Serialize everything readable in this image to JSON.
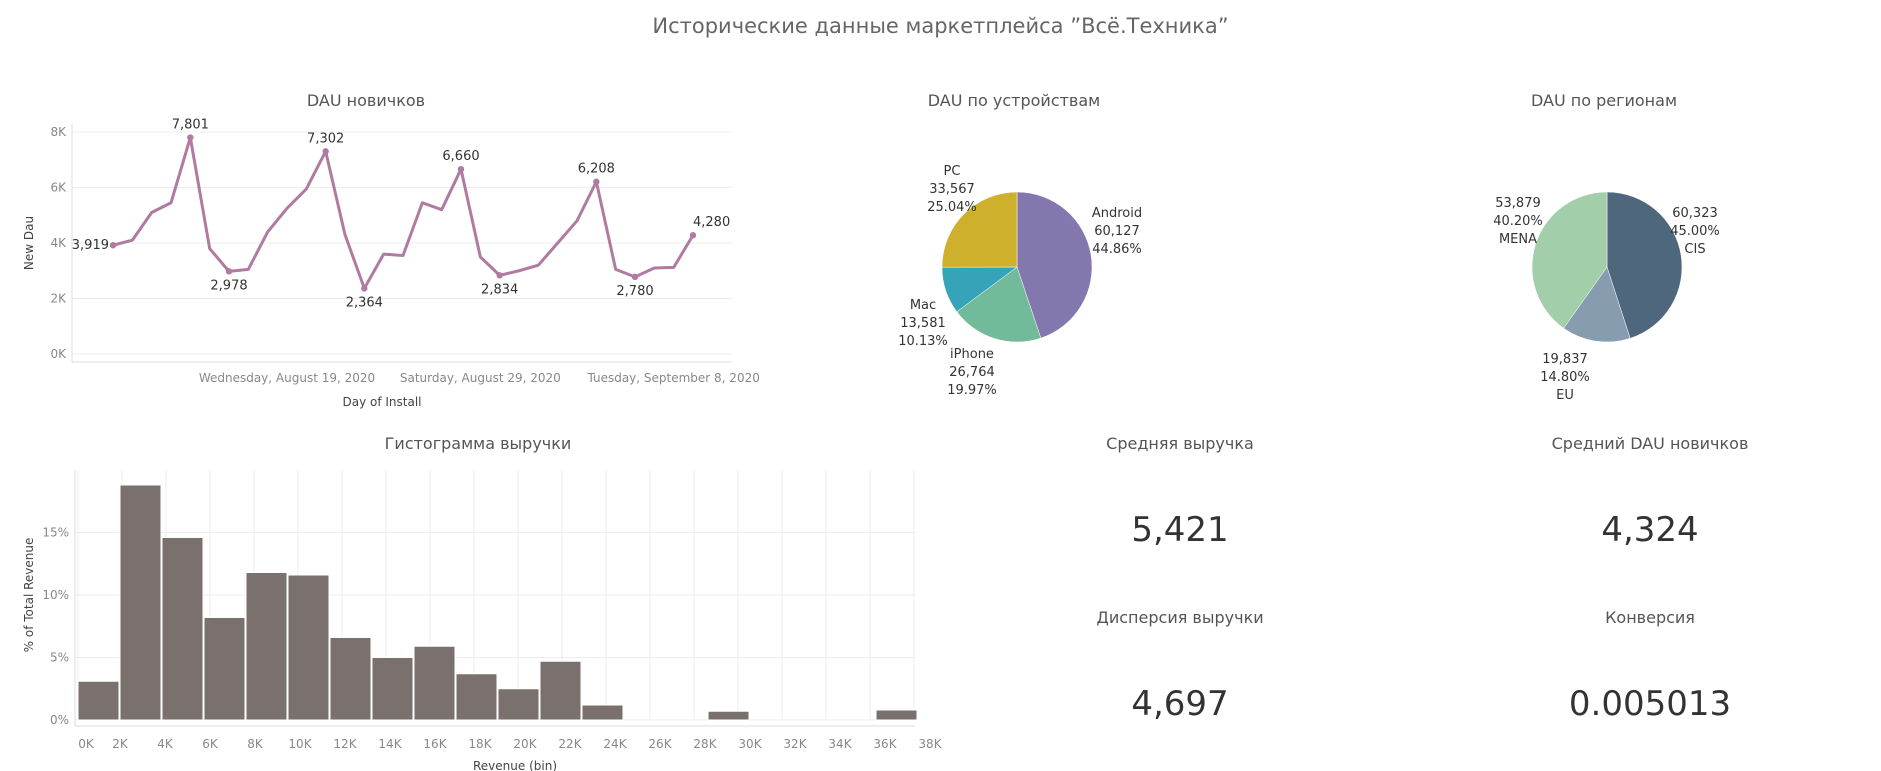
{
  "dashboard_title": "Исторические данные маркетплейса ”Всё.Техника”",
  "colors": {
    "line": "#b07aa1",
    "hist_bar": "#7a706d",
    "grid": "#ececec"
  },
  "kpis": {
    "avg_revenue": {
      "label": "Средняя выручка",
      "value": "5,421"
    },
    "avg_new_dau": {
      "label": "Средний DAU новичков",
      "value": "4,324"
    },
    "revenue_variance": {
      "label": "Дисперсия выручки",
      "value": "4,697"
    },
    "conversion": {
      "label": "Конверсия",
      "value": "0.005013"
    }
  },
  "chart_data": [
    {
      "id": "dau_new",
      "type": "line",
      "title": "DAU новичков",
      "xlabel": "Day of Install",
      "ylabel": "New Dau",
      "ylim": [
        0,
        8000
      ],
      "y_ticks": [
        0,
        2000,
        4000,
        6000,
        8000
      ],
      "y_tick_labels": [
        "0K",
        "2K",
        "4K",
        "6K",
        "8K"
      ],
      "x_tick_labels": [
        {
          "index": 9,
          "label": "Wednesday, August 19, 2020"
        },
        {
          "index": 19,
          "label": "Saturday, August 29, 2020"
        },
        {
          "index": 29,
          "label": "Tuesday, September 8, 2020"
        }
      ],
      "grid": true,
      "series": [
        {
          "values": [
            3919,
            4100,
            5100,
            5450,
            7801,
            3800,
            2978,
            3050,
            4400,
            5250,
            5950,
            7302,
            4300,
            2364,
            3600,
            3550,
            5450,
            5200,
            6660,
            3500,
            2834,
            3000,
            3200,
            4000,
            4800,
            6208,
            3050,
            2780,
            3100,
            3120,
            4280
          ],
          "labels": [
            {
              "index": 0,
              "text": "3,919"
            },
            {
              "index": 4,
              "text": "7,801"
            },
            {
              "index": 6,
              "text": "2,978"
            },
            {
              "index": 11,
              "text": "7,302"
            },
            {
              "index": 13,
              "text": "2,364"
            },
            {
              "index": 18,
              "text": "6,660"
            },
            {
              "index": 20,
              "text": "2,834"
            },
            {
              "index": 25,
              "text": "6,208"
            },
            {
              "index": 27,
              "text": "2,780"
            },
            {
              "index": 30,
              "text": "4,280"
            }
          ]
        }
      ]
    },
    {
      "id": "dau_devices",
      "type": "pie",
      "title": "DAU по устройствам",
      "slices": [
        {
          "name": "Android",
          "value": 60127,
          "value_label": "60,127",
          "pct": "44.86%",
          "color": "#8477ae"
        },
        {
          "name": "iPhone",
          "value": 26764,
          "value_label": "26,764",
          "pct": "19.97%",
          "color": "#72bb9a"
        },
        {
          "name": "Mac",
          "value": 13581,
          "value_label": "13,581",
          "pct": "10.13%",
          "color": "#35a4b9"
        },
        {
          "name": "PC",
          "value": 33567,
          "value_label": "33,567",
          "pct": "25.04%",
          "color": "#cfb02c"
        }
      ]
    },
    {
      "id": "dau_regions",
      "type": "pie",
      "title": "DAU по регионам",
      "slices": [
        {
          "name": "CIS",
          "value": 60323,
          "value_label": "60,323",
          "pct": "45.00%",
          "color": "#4e677d"
        },
        {
          "name": "EU",
          "value": 19837,
          "value_label": "19,837",
          "pct": "14.80%",
          "color": "#879daf"
        },
        {
          "name": "MENA",
          "value": 53879,
          "value_label": "53,879",
          "pct": "40.20%",
          "color": "#a2cfaa"
        }
      ]
    },
    {
      "id": "revenue_hist",
      "type": "bar",
      "title": "Гистограмма выручки",
      "xlabel": "Revenue (bin)",
      "ylabel": "% of Total Revenue",
      "ylim": [
        0,
        20
      ],
      "y_ticks": [
        0,
        5,
        10,
        15
      ],
      "y_tick_labels": [
        "0%",
        "5%",
        "10%",
        "15%"
      ],
      "bin_width": 2000,
      "bin_starts": [
        0,
        2000,
        4000,
        6000,
        8000,
        10000,
        12000,
        14000,
        16000,
        18000,
        20000,
        22000,
        24000,
        26000,
        28000,
        30000,
        32000,
        34000,
        36000,
        38000
      ],
      "values": [
        3.1,
        18.8,
        14.6,
        8.2,
        11.8,
        11.6,
        6.6,
        5.0,
        5.9,
        3.7,
        2.5,
        4.7,
        1.2,
        0,
        0,
        0.7,
        0,
        0,
        0,
        0.8
      ],
      "x_tick_labels": [
        "0K",
        "2K",
        "4K",
        "6K",
        "8K",
        "10K",
        "12K",
        "14K",
        "16K",
        "18K",
        "20K",
        "22K",
        "24K",
        "26K",
        "28K",
        "30K",
        "32K",
        "34K",
        "36K",
        "38K"
      ],
      "grid": true
    }
  ]
}
